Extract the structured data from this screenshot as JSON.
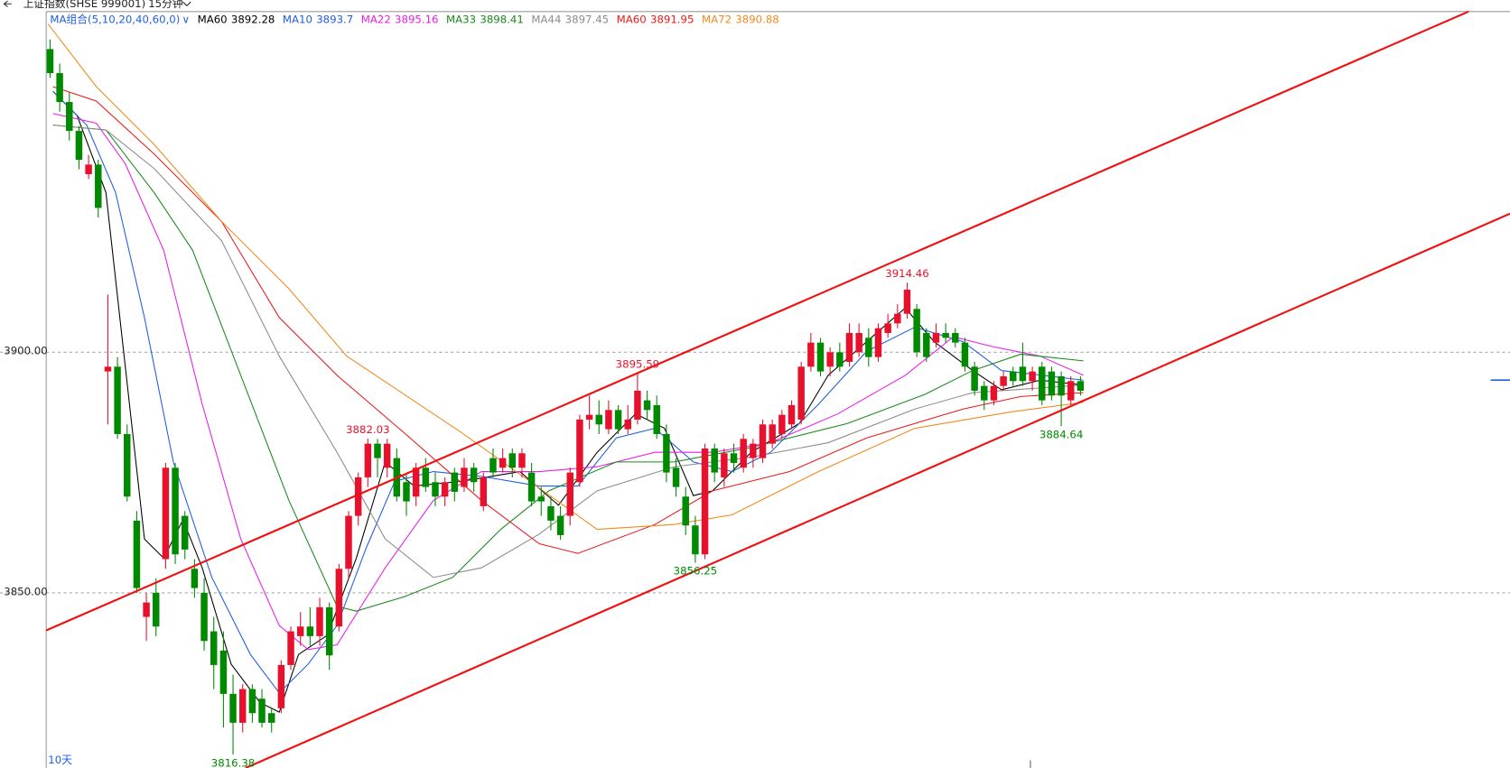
{
  "header": {
    "symbol": "上证指数(SHSE 999001)",
    "period": "15分钟"
  },
  "chart_data": {
    "type": "candlestick",
    "ma_group_label": "MA组合(5,10,20,40,60,0)",
    "range_label": "10天",
    "up_color": "#e8112d",
    "down_color": "#008a00",
    "xlim": [
      -0.4,
      151.6
    ],
    "ylim": [
      3813.6,
      3970.8
    ],
    "yticks": [
      {
        "value": 3850,
        "label": "3850.00"
      },
      {
        "value": 3900,
        "label": "3900.00"
      }
    ],
    "grid": true,
    "ohlc": [
      [
        3963,
        3965,
        3957,
        3958
      ],
      [
        3958,
        3960,
        3950,
        3952
      ],
      [
        3952,
        3954,
        3944,
        3946
      ],
      [
        3946,
        3947,
        3938,
        3940
      ],
      [
        3937,
        3941,
        3936,
        3939
      ],
      [
        3939,
        3940,
        3928,
        3930
      ],
      [
        3896,
        3912,
        3885,
        3897
      ],
      [
        3897,
        3899,
        3882,
        3883
      ],
      [
        3883,
        3885,
        3869,
        3870
      ],
      [
        3865,
        3867,
        3850,
        3851
      ],
      [
        3845,
        3850,
        3840,
        3848
      ],
      [
        3850,
        3853,
        3841,
        3843
      ],
      [
        3857,
        3877,
        3855,
        3876
      ],
      [
        3876,
        3877,
        3856,
        3858
      ],
      [
        3866,
        3867,
        3857,
        3859
      ],
      [
        3855,
        3857,
        3849,
        3851
      ],
      [
        3850,
        3853,
        3838,
        3840
      ],
      [
        3842,
        3845,
        3830,
        3835
      ],
      [
        3838,
        3842,
        3822,
        3829
      ],
      [
        3829,
        3833,
        3816.38,
        3823
      ],
      [
        3823,
        3831,
        3821,
        3830
      ],
      [
        3830,
        3831,
        3823,
        3825
      ],
      [
        3828,
        3830,
        3822,
        3823
      ],
      [
        3825,
        3826,
        3821,
        3823
      ],
      [
        3826,
        3836,
        3825,
        3835
      ],
      [
        3835,
        3843,
        3834,
        3842
      ],
      [
        3841,
        3846,
        3839,
        3843
      ],
      [
        3843,
        3847,
        3839,
        3841
      ],
      [
        3841,
        3849,
        3839,
        3847
      ],
      [
        3847,
        3848,
        3834,
        3837
      ],
      [
        3843,
        3856,
        3842,
        3855
      ],
      [
        3855,
        3867,
        3853,
        3866
      ],
      [
        3866,
        3875,
        3864,
        3874
      ],
      [
        3874,
        3882.03,
        3872,
        3881
      ],
      [
        3881,
        3882,
        3874,
        3878
      ],
      [
        3876,
        3882,
        3874,
        3881
      ],
      [
        3878,
        3880,
        3869,
        3870
      ],
      [
        3873,
        3875,
        3866,
        3869
      ],
      [
        3870,
        3877,
        3868,
        3876
      ],
      [
        3876,
        3878,
        3871,
        3872
      ],
      [
        3873,
        3875,
        3868,
        3870
      ],
      [
        3870,
        3874,
        3868,
        3873
      ],
      [
        3875,
        3876,
        3869,
        3871
      ],
      [
        3872,
        3878,
        3871,
        3876
      ],
      [
        3876,
        3877,
        3871,
        3873
      ],
      [
        3868,
        3875,
        3867,
        3874
      ],
      [
        3878,
        3880,
        3874,
        3875
      ],
      [
        3876,
        3880,
        3875,
        3878
      ],
      [
        3879,
        3880,
        3874,
        3876
      ],
      [
        3876,
        3880,
        3874,
        3879
      ],
      [
        3875,
        3877,
        3868,
        3869
      ],
      [
        3870,
        3872,
        3866,
        3869
      ],
      [
        3868,
        3870,
        3863,
        3865
      ],
      [
        3866,
        3868,
        3861,
        3862
      ],
      [
        3866,
        3876,
        3864,
        3875
      ],
      [
        3873,
        3887,
        3872,
        3886
      ],
      [
        3886,
        3891,
        3884,
        3887
      ],
      [
        3887,
        3890,
        3883,
        3885
      ],
      [
        3884,
        3890,
        3883,
        3888
      ],
      [
        3888,
        3889,
        3883,
        3884
      ],
      [
        3884,
        3889,
        3883,
        3886
      ],
      [
        3886,
        3895.59,
        3885,
        3892
      ],
      [
        3890,
        3892,
        3886,
        3888
      ],
      [
        3889,
        3891,
        3882,
        3883
      ],
      [
        3883,
        3885,
        3873,
        3875
      ],
      [
        3876,
        3878,
        3870,
        3872
      ],
      [
        3870,
        3872,
        3862,
        3864
      ],
      [
        3864,
        3866,
        3856.25,
        3858
      ],
      [
        3858,
        3881,
        3857,
        3880
      ],
      [
        3880,
        3881,
        3873,
        3875
      ],
      [
        3874,
        3880,
        3872,
        3879
      ],
      [
        3879,
        3881,
        3875,
        3877
      ],
      [
        3876,
        3883,
        3875,
        3882
      ],
      [
        3878,
        3882,
        3876,
        3881
      ],
      [
        3878,
        3886,
        3877,
        3885
      ],
      [
        3881,
        3886,
        3880,
        3885
      ],
      [
        3883,
        3888,
        3882,
        3887
      ],
      [
        3885,
        3890,
        3884,
        3889
      ],
      [
        3886,
        3898,
        3885,
        3897
      ],
      [
        3897,
        3904,
        3896,
        3902
      ],
      [
        3902,
        3903,
        3895,
        3896
      ],
      [
        3897,
        3901,
        3895,
        3900
      ],
      [
        3900,
        3902,
        3896,
        3897
      ],
      [
        3898,
        3906,
        3897,
        3904
      ],
      [
        3900,
        3906,
        3899,
        3904
      ],
      [
        3903,
        3905,
        3897,
        3899
      ],
      [
        3899,
        3906,
        3898,
        3905
      ],
      [
        3904,
        3908,
        3903,
        3906
      ],
      [
        3906,
        3910,
        3905,
        3908
      ],
      [
        3908,
        3914.46,
        3907,
        3913
      ],
      [
        3909,
        3910,
        3899,
        3900
      ],
      [
        3904,
        3905,
        3898,
        3899
      ],
      [
        3902,
        3906,
        3901,
        3904
      ],
      [
        3904,
        3906,
        3902,
        3903
      ],
      [
        3904,
        3905,
        3901,
        3902
      ],
      [
        3902,
        3903,
        3896,
        3897
      ],
      [
        3897,
        3898,
        3891,
        3892
      ],
      [
        3893,
        3894,
        3888,
        3890
      ],
      [
        3890,
        3894,
        3889,
        3893
      ],
      [
        3893,
        3896,
        3892,
        3895
      ],
      [
        3896,
        3897,
        3893,
        3894
      ],
      [
        3897,
        3902,
        3893,
        3894
      ],
      [
        3894,
        3897,
        3892,
        3896
      ],
      [
        3897,
        3898,
        3889,
        3890
      ],
      [
        3896,
        3897,
        3890,
        3891
      ],
      [
        3895,
        3896,
        3884.64,
        3891
      ],
      [
        3890,
        3895,
        3889,
        3894
      ],
      [
        3894,
        3895,
        3891,
        3892
      ]
    ],
    "series": [
      {
        "name": "MA60",
        "last": 3892.28,
        "color": "#000000",
        "x": [
          0.3,
          2.8,
          5.8,
          7.8,
          9.8,
          11.8,
          13.8,
          15.8,
          18.8,
          21.8,
          23.8,
          25.8,
          28.8,
          31.8,
          34.8,
          37.8,
          42.8,
          48.8,
          52.8,
          56.8,
          60.8,
          63.8,
          66.8,
          68.8,
          72.8,
          77.8,
          80.8,
          84.8,
          88.8,
          91.8,
          95.8,
          98.8,
          102.8,
          107.3
        ],
        "values": [
          3954.2,
          3949.2,
          3933.2,
          3897.2,
          3861.2,
          3857.2,
          3865.2,
          3855.2,
          3835.2,
          3827.2,
          3825.2,
          3837.2,
          3841.2,
          3857.2,
          3877.2,
          3872.2,
          3873.2,
          3875.2,
          3868.2,
          3879.2,
          3887.2,
          3884.2,
          3870.2,
          3871.2,
          3879.2,
          3885.2,
          3895.2,
          3902.2,
          3909.2,
          3902.2,
          3896.2,
          3892.2,
          3894.2,
          3893.2
        ]
      },
      {
        "name": "MA10",
        "last": 3893.7,
        "color": "#1f5fe0",
        "x": [
          0.3,
          3.8,
          6.8,
          9.8,
          12.8,
          16.8,
          20.8,
          23.8,
          26.8,
          29.8,
          32.8,
          35.8,
          39.8,
          44.8,
          50.8,
          54.8,
          58.8,
          62.8,
          66.8,
          70.8,
          74.8,
          79.8,
          84.8,
          89.8,
          94.8,
          98.8,
          107.3
        ],
        "values": [
          3954.2,
          3947.2,
          3933.2,
          3907.2,
          3877.2,
          3853.2,
          3837.2,
          3829.2,
          3835.2,
          3843.2,
          3859.2,
          3873.2,
          3875.2,
          3874.2,
          3872.2,
          3872.2,
          3882.2,
          3884.2,
          3877.2,
          3875.2,
          3879.2,
          3889.2,
          3900.2,
          3905.2,
          3902.2,
          3896.2,
          3894.2
        ]
      },
      {
        "name": "MA22",
        "last": 3895.16,
        "color": "#e81ee8",
        "x": [
          0.3,
          4.8,
          7.8,
          11.8,
          15.8,
          19.8,
          23.8,
          26.8,
          29.8,
          34.8,
          39.8,
          44.8,
          50.8,
          56.8,
          62.8,
          68.8,
          74.8,
          81.8,
          88.8,
          93.8,
          97.8,
          102.8,
          107.3
        ],
        "values": [
          3949.6,
          3947.6,
          3939.2,
          3921.2,
          3889.2,
          3861.2,
          3843.2,
          3838.2,
          3839.2,
          3855.2,
          3869.2,
          3875.2,
          3875.2,
          3876.2,
          3879.2,
          3879.2,
          3881.2,
          3887.2,
          3895.2,
          3903.2,
          3901.2,
          3899.2,
          3895.2
        ]
      },
      {
        "name": "MA33",
        "last": 3898.41,
        "color": "#1a8a1a",
        "x": [
          0.3,
          5.8,
          10.8,
          14.8,
          19.8,
          24.8,
          29.8,
          31.8,
          36.8,
          41.8,
          46.8,
          51.8,
          58.8,
          64.8,
          72.8,
          82.8,
          90.8,
          95.8,
          100.8,
          107.3
        ],
        "values": [
          3947.2,
          3946.2,
          3933.2,
          3921.2,
          3895.2,
          3869.2,
          3847.2,
          3846.2,
          3849.2,
          3853.2,
          3863.2,
          3871.2,
          3877.2,
          3877.2,
          3880.2,
          3885.2,
          3891.2,
          3896.2,
          3899.6,
          3898.2
        ]
      },
      {
        "name": "MA44",
        "last": 3897.45,
        "color": "#8c8c8c",
        "x": [
          0.3,
          5.8,
          10.8,
          17.8,
          23.8,
          29.8,
          34.8,
          39.8,
          44.8,
          50.8,
          56.8,
          64.8,
          72.8,
          80.8,
          89.8,
          95.8,
          107.3
        ],
        "values": [
          3947.2,
          3946.2,
          3938.2,
          3923.2,
          3899.2,
          3879.2,
          3861.2,
          3853.2,
          3855.2,
          3862.2,
          3871.2,
          3876.2,
          3878.2,
          3881.2,
          3888.2,
          3891.6,
          3893.2
        ]
      },
      {
        "name": "MA60",
        "last": 3891.95,
        "color": "#e81a1a",
        "x": [
          0.3,
          4.8,
          10.8,
          17.8,
          23.8,
          29.8,
          36.8,
          44.8,
          50.8,
          54.8,
          62.8,
          68.8,
          76.8,
          84.8,
          94.8,
          100.8,
          107.3
        ],
        "values": [
          3955.2,
          3952.2,
          3941.2,
          3927.2,
          3907.2,
          3895.2,
          3883.2,
          3869.2,
          3860.2,
          3858.2,
          3864.2,
          3871.2,
          3875.2,
          3882.2,
          3888.2,
          3890.8,
          3891.6
        ]
      },
      {
        "name": "MA72",
        "last": 3890.88,
        "color": "#f08a1e",
        "x": [
          -0.2,
          4.8,
          10.8,
          17.8,
          24.8,
          30.8,
          36.8,
          42.8,
          49.8,
          56.8,
          64.8,
          70.8,
          79.8,
          89.8,
          99.8,
          107.3
        ],
        "values": [
          3968.2,
          3955.2,
          3943.2,
          3927.2,
          3913.2,
          3899.2,
          3891.2,
          3883.2,
          3873.2,
          3863.2,
          3864.2,
          3866.2,
          3875.2,
          3884.2,
          3887.6,
          3889.6
        ]
      }
    ],
    "trend_lines": [
      {
        "color": "#f01010",
        "x": [
          -0.4,
          147.3
        ],
        "values": [
          3842.2,
          3970.8
        ]
      },
      {
        "color": "#f01010",
        "x": [
          20.3,
          151.6
        ],
        "values": [
          3813.6,
          3928.8
        ]
      }
    ],
    "annotations": [
      {
        "x": 89,
        "value": 3914.46,
        "side": "above"
      },
      {
        "x": 61,
        "value": 3895.59,
        "side": "above"
      },
      {
        "x": 33,
        "value": 3882.03,
        "side": "above"
      },
      {
        "x": 67,
        "value": 3856.25,
        "side": "below"
      },
      {
        "x": 19,
        "value": 3816.38,
        "side": "below"
      },
      {
        "x": 105,
        "value": 3884.64,
        "side": "below"
      }
    ],
    "current_price": 3894.2,
    "day_separators": [
      101.8
    ]
  }
}
